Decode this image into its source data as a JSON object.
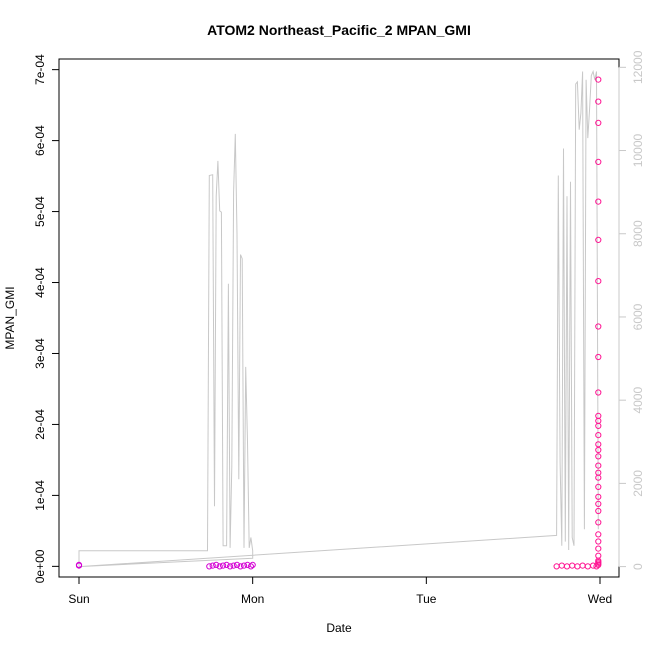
{
  "chart_data": {
    "type": "scatter",
    "title": "ATOM2 Northeast_Pacific_2 MPAN_GMI",
    "xlabel": "Date",
    "ylabel": "MPAN_GMI",
    "x_ticks": [
      "Sun",
      "Mon",
      "Tue",
      "Wed"
    ],
    "xlim": [
      0,
      3.03
    ],
    "ylim": [
      -1.5e-05,
      0.000715
    ],
    "y_ticks": [
      {
        "value": 0,
        "label": "0e+00"
      },
      {
        "value": 0.0001,
        "label": "1e-04"
      },
      {
        "value": 0.0002,
        "label": "2e-04"
      },
      {
        "value": 0.0003,
        "label": "3e-04"
      },
      {
        "value": 0.0004,
        "label": "4e-04"
      },
      {
        "value": 0.0005,
        "label": "5e-04"
      },
      {
        "value": 0.0006,
        "label": "6e-04"
      },
      {
        "value": 0.0007,
        "label": "7e-04"
      }
    ],
    "y2lim": [
      -250,
      12200
    ],
    "y2_ticks": [
      0,
      2000,
      4000,
      6000,
      8000,
      10000,
      12000
    ],
    "colors": {
      "points_early": "#d400d4",
      "points_late": "#ff1493",
      "altitude_line": "#c8c8c8",
      "axis": "#000000",
      "secondary_axis": "#c8c8c8"
    },
    "series": [
      {
        "marker": "circle",
        "color": "#d400d4",
        "x": [
          0.0,
          0.0,
          0.75,
          0.77,
          0.79,
          0.81,
          0.83,
          0.85,
          0.87,
          0.89,
          0.91,
          0.93,
          0.95,
          0.97,
          0.99,
          1.0
        ],
        "values": [
          1e-06,
          2e-06,
          0.0,
          1e-06,
          2e-06,
          0.0,
          1e-06,
          2e-06,
          0.0,
          1e-06,
          2e-06,
          0.0,
          1e-06,
          2e-06,
          0.0,
          2e-06
        ]
      },
      {
        "marker": "circle",
        "color": "#ff1493",
        "x": [
          2.75,
          2.78,
          2.81,
          2.84,
          2.87,
          2.9,
          2.93,
          2.96,
          2.98,
          2.99,
          2.99,
          2.99,
          2.99,
          2.99,
          2.99,
          2.99,
          2.99,
          2.99,
          2.99,
          2.99,
          2.99,
          2.99,
          2.99,
          2.99,
          2.99,
          2.99,
          2.99,
          2.99,
          2.99,
          2.99,
          2.99,
          2.99,
          2.99,
          2.99,
          2.99,
          2.99,
          2.99,
          2.99,
          2.99,
          2.99,
          2.99,
          2.99
        ],
        "values": [
          0.0,
          1e-06,
          0.0,
          1e-06,
          0.0,
          1e-06,
          0.0,
          1e-06,
          0.0,
          2e-06,
          4e-06,
          6e-06,
          8e-06,
          1.5e-05,
          2.5e-05,
          3.5e-05,
          4.5e-05,
          6.2e-05,
          7.8e-05,
          8.8e-05,
          9.8e-05,
          0.000112,
          0.000125,
          0.000132,
          0.000142,
          0.000155,
          0.000164,
          0.000172,
          0.000185,
          0.000198,
          0.000205,
          0.000212,
          0.000245,
          0.000295,
          0.000338,
          0.000402,
          0.00046,
          0.000514,
          0.00057,
          0.000625,
          0.000655,
          0.000686
        ]
      }
    ],
    "altitude_line": {
      "x": [
        0.0,
        0.0,
        0.74,
        0.75,
        0.77,
        0.78,
        0.79,
        0.8,
        0.81,
        0.82,
        0.83,
        0.85,
        0.86,
        0.87,
        0.88,
        0.89,
        0.9,
        0.91,
        0.92,
        0.93,
        0.94,
        0.95,
        0.96,
        0.97,
        0.98,
        0.99,
        1.0,
        1.0,
        1.0,
        0.0,
        2.75,
        2.76,
        2.77,
        2.78,
        2.79,
        2.8,
        2.81,
        2.82,
        2.83,
        2.84,
        2.85,
        2.86,
        2.87,
        2.88,
        2.89,
        2.9,
        2.91,
        2.92,
        2.93,
        2.94,
        2.95,
        2.96,
        2.97,
        2.98,
        2.99
      ],
      "values": [
        0,
        380,
        380,
        9400,
        9420,
        1450,
        8900,
        9750,
        8550,
        8520,
        500,
        500,
        6800,
        450,
        2400,
        9000,
        10400,
        8000,
        2100,
        7500,
        7400,
        450,
        4800,
        3000,
        450,
        700,
        380,
        380,
        200,
        0,
        750,
        9400,
        2500,
        500,
        10050,
        600,
        8900,
        400,
        9250,
        700,
        500,
        11600,
        11650,
        10500,
        10900,
        11900,
        900,
        11700,
        10300,
        11000,
        11800,
        11900,
        11700,
        11900,
        900
      ]
    }
  }
}
